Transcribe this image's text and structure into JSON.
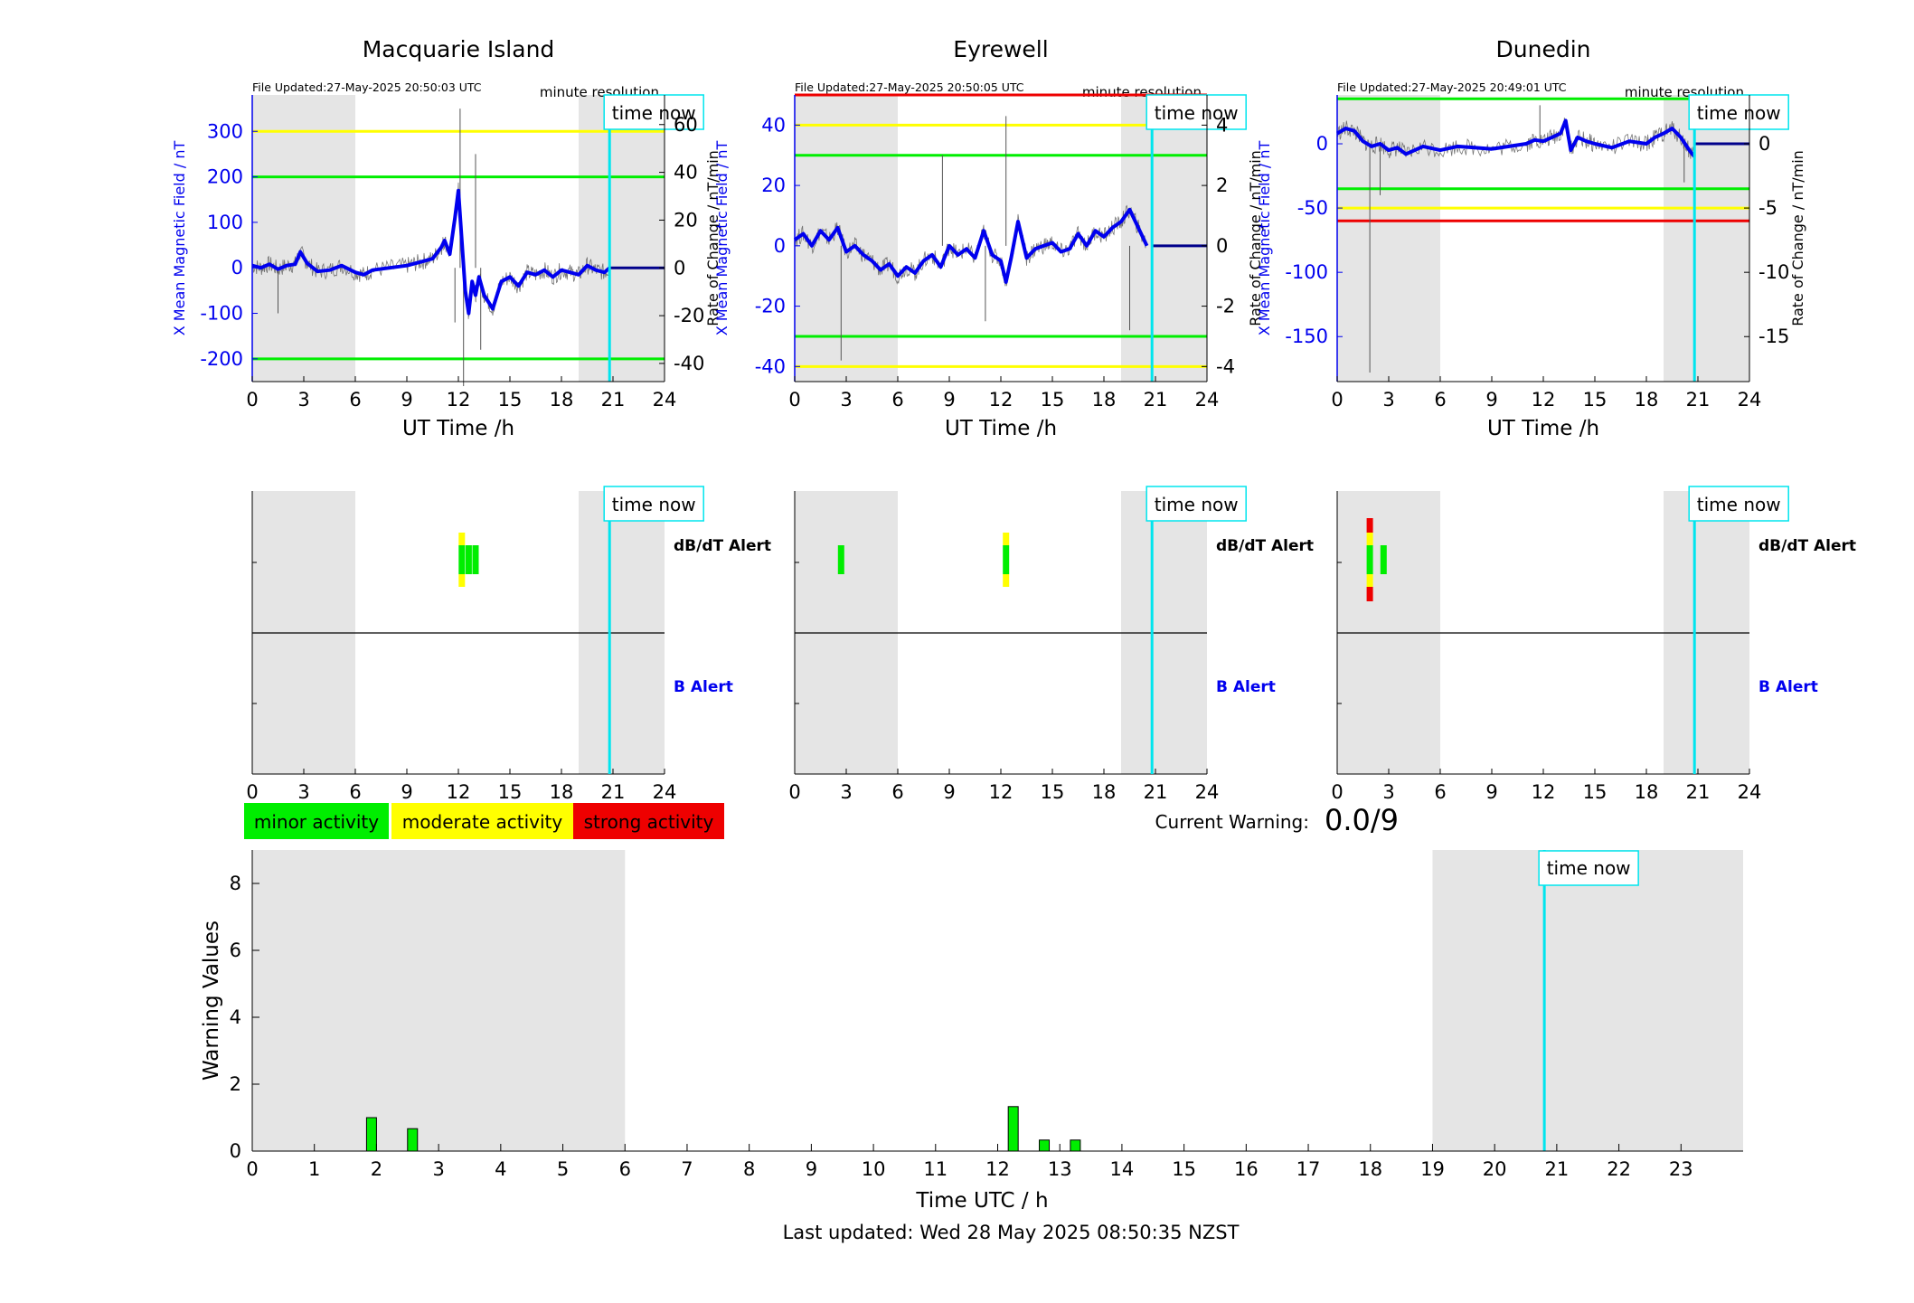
{
  "colors": {
    "blue": "#0000ee",
    "cyan": "#00e5ee",
    "green": "#00ee00",
    "yellow": "#ffff00",
    "red": "#ee0000",
    "shade": "#e5e5e5",
    "trace": "#555555"
  },
  "chart_data": [
    {
      "type": "line",
      "title": "Macquarie Island",
      "file_updated": "File Updated:27-May-2025 20:50:03 UTC",
      "resolution": "minute resolution",
      "xlabel": "UT Time /h",
      "ylabel": "X Mean Magnetic Field / nT",
      "y2label": "Rate of Change / nT/min",
      "xlim": [
        0,
        24
      ],
      "ylim": [
        -250,
        380
      ],
      "y2lim": [
        -47.6,
        72.4
      ],
      "xticks": [
        0,
        3,
        6,
        9,
        12,
        15,
        18,
        21,
        24
      ],
      "yticks": [
        -200,
        -100,
        0,
        100,
        200,
        300
      ],
      "y2ticks": [
        -40,
        -20,
        0,
        20,
        40,
        60
      ],
      "time_now": 20.8,
      "time_now_label": "time now",
      "shaded": [
        [
          0,
          6
        ],
        [
          19,
          24
        ]
      ],
      "thresholds": [
        {
          "value": 300,
          "color": "yellow"
        },
        {
          "value": 200,
          "color": "green"
        },
        {
          "value": -200,
          "color": "green"
        }
      ],
      "series": [
        {
          "name": "X",
          "x": [
            0,
            0.5,
            1,
            1.5,
            2,
            2.5,
            2.8,
            3.2,
            3.8,
            4.5,
            5.2,
            6,
            6.5,
            7,
            8,
            9,
            9.5,
            10,
            10.5,
            11,
            11.2,
            11.5,
            11.8,
            12,
            12.2,
            12.4,
            12.6,
            12.8,
            13,
            13.2,
            13.5,
            14,
            14.5,
            15,
            15.5,
            16,
            16.5,
            17,
            17.5,
            18,
            18.5,
            19,
            19.5,
            20,
            20.5,
            20.8
          ],
          "y": [
            5,
            0,
            8,
            -3,
            5,
            8,
            35,
            10,
            -8,
            -5,
            5,
            -10,
            -15,
            -5,
            0,
            5,
            10,
            15,
            20,
            45,
            60,
            30,
            110,
            170,
            60,
            -50,
            -100,
            -30,
            -60,
            -20,
            -60,
            -90,
            -30,
            -20,
            -40,
            -10,
            -15,
            -5,
            -20,
            -5,
            -10,
            -15,
            5,
            -5,
            -10,
            0
          ]
        }
      ],
      "spikes": [
        {
          "x": 12.1,
          "y": 350
        },
        {
          "x": 12.3,
          "y": -260
        },
        {
          "x": 13,
          "y": 250
        },
        {
          "x": 13.3,
          "y": -180
        },
        {
          "x": 1.5,
          "y": -100
        },
        {
          "x": 11.8,
          "y": -120
        }
      ]
    },
    {
      "type": "line",
      "title": "Eyrewell",
      "file_updated": "File Updated:27-May-2025 20:50:05 UTC",
      "resolution": "minute resolution",
      "xlabel": "UT Time /h",
      "ylabel": "X Mean Magnetic Field / nT",
      "y2label": "Rate of Change / nT/min",
      "xlim": [
        0,
        24
      ],
      "ylim": [
        -45,
        50
      ],
      "y2lim": [
        -4.5,
        5
      ],
      "xticks": [
        0,
        3,
        6,
        9,
        12,
        15,
        18,
        21,
        24
      ],
      "yticks": [
        -40,
        -20,
        0,
        20,
        40
      ],
      "y2ticks": [
        -4,
        -2,
        0,
        2,
        4
      ],
      "time_now": 20.8,
      "time_now_label": "time now",
      "shaded": [
        [
          0,
          6
        ],
        [
          19,
          24
        ]
      ],
      "thresholds": [
        {
          "value": 50,
          "color": "red"
        },
        {
          "value": 40,
          "color": "yellow"
        },
        {
          "value": 30,
          "color": "green"
        },
        {
          "value": -30,
          "color": "green"
        },
        {
          "value": -40,
          "color": "yellow"
        }
      ],
      "series": [
        {
          "name": "X",
          "x": [
            0,
            0.5,
            1,
            1.5,
            2,
            2.5,
            3,
            3.5,
            4,
            4.5,
            5,
            5.5,
            6,
            6.5,
            7,
            7.5,
            8,
            8.5,
            9,
            9.5,
            10,
            10.5,
            11,
            11.5,
            12,
            12.3,
            12.6,
            13,
            13.5,
            14,
            14.5,
            15,
            15.5,
            16,
            16.5,
            17,
            17.5,
            18,
            18.5,
            19,
            19.5,
            20,
            20.5
          ],
          "y": [
            2,
            4,
            0,
            5,
            2,
            6,
            -2,
            0,
            -3,
            -5,
            -8,
            -6,
            -10,
            -7,
            -9,
            -5,
            -3,
            -7,
            0,
            -3,
            -1,
            -4,
            5,
            -3,
            -5,
            -12,
            -4,
            8,
            -4,
            -1,
            0,
            1,
            -2,
            -1,
            4,
            0,
            5,
            3,
            6,
            8,
            12,
            6,
            0
          ]
        }
      ],
      "spikes": [
        {
          "x": 2.7,
          "y": -38
        },
        {
          "x": 12.3,
          "y": 43
        },
        {
          "x": 19.5,
          "y": -28
        },
        {
          "x": 11.1,
          "y": -25
        },
        {
          "x": 8.6,
          "y": 30
        }
      ]
    },
    {
      "type": "line",
      "title": "Dunedin",
      "file_updated": "File Updated:27-May-2025 20:49:01 UTC",
      "resolution": "minute resolution",
      "xlabel": "UT Time /h",
      "ylabel": "X Mean Magnetic Field / nT",
      "y2label": "Rate of Change / nT/min",
      "xlim": [
        0,
        24
      ],
      "ylim": [
        -185,
        38
      ],
      "y2lim": [
        -18.5,
        3.8
      ],
      "xticks": [
        0,
        3,
        6,
        9,
        12,
        15,
        18,
        21,
        24
      ],
      "yticks": [
        -150,
        -100,
        -50,
        0
      ],
      "y2ticks": [
        -15,
        -10,
        -5,
        0
      ],
      "time_now": 20.8,
      "time_now_label": "time now",
      "shaded": [
        [
          0,
          6
        ],
        [
          19,
          24
        ]
      ],
      "thresholds": [
        {
          "value": 35,
          "color": "green"
        },
        {
          "value": -35,
          "color": "green"
        },
        {
          "value": -50,
          "color": "yellow"
        },
        {
          "value": -60,
          "color": "red"
        }
      ],
      "series": [
        {
          "name": "X",
          "x": [
            0,
            0.5,
            1,
            1.5,
            2,
            2.5,
            3,
            3.5,
            4,
            5,
            6,
            7,
            8,
            9,
            10,
            11,
            11.5,
            12,
            12.5,
            13,
            13.3,
            13.6,
            14,
            14.5,
            15,
            16,
            17,
            18,
            18.5,
            19,
            19.5,
            20,
            20.5,
            20.8
          ],
          "y": [
            8,
            12,
            10,
            2,
            -2,
            0,
            -5,
            -3,
            -8,
            -2,
            -5,
            -2,
            -3,
            -4,
            -2,
            0,
            3,
            2,
            5,
            8,
            18,
            -5,
            5,
            2,
            0,
            -3,
            2,
            0,
            5,
            8,
            12,
            5,
            -5,
            -10
          ]
        }
      ],
      "spikes": [
        {
          "x": 1.9,
          "y": -178
        },
        {
          "x": 2.5,
          "y": -40
        },
        {
          "x": 11.8,
          "y": 30
        },
        {
          "x": 20.2,
          "y": -30
        }
      ]
    }
  ],
  "alerts": {
    "dbdt_label": "dB/dT Alert",
    "b_label": "B Alert",
    "xticks": [
      0,
      3,
      6,
      9,
      12,
      15,
      18,
      21,
      24
    ],
    "panels": [
      {
        "dbdt": [
          {
            "x": 12.2,
            "level": "moderate"
          },
          {
            "x": 12.6,
            "level": "minor"
          },
          {
            "x": 13.0,
            "level": "minor"
          }
        ]
      },
      {
        "dbdt": [
          {
            "x": 2.7,
            "level": "minor"
          },
          {
            "x": 12.3,
            "level": "moderate"
          }
        ]
      },
      {
        "dbdt": [
          {
            "x": 1.9,
            "level": "strong"
          },
          {
            "x": 2.7,
            "level": "minor"
          }
        ]
      }
    ]
  },
  "legend": [
    {
      "label": "minor activity",
      "color": "green"
    },
    {
      "label": "moderate activity",
      "color": "yellow"
    },
    {
      "label": "strong activity",
      "color": "red"
    }
  ],
  "current_warning": {
    "label": "Current Warning:",
    "value": "0.0/9"
  },
  "warning_chart": {
    "type": "bar",
    "xlabel": "Time UTC / h",
    "ylabel": "Warning Values",
    "xlim": [
      0,
      24
    ],
    "ylim": [
      0,
      9
    ],
    "xticks": [
      0,
      1,
      2,
      3,
      4,
      5,
      6,
      7,
      8,
      9,
      10,
      11,
      12,
      13,
      14,
      15,
      16,
      17,
      18,
      19,
      20,
      21,
      22,
      23
    ],
    "yticks": [
      0,
      2,
      4,
      6,
      8
    ],
    "shaded": [
      [
        0,
        6
      ],
      [
        19,
        24
      ]
    ],
    "time_now": 20.8,
    "time_now_label": "time now",
    "x": [
      1.92,
      2.58,
      12.25,
      12.75,
      13.25
    ],
    "values": [
      1.0,
      0.67,
      1.33,
      0.33,
      0.33
    ]
  },
  "footer": "Last updated: Wed 28 May 2025 08:50:35 NZST"
}
